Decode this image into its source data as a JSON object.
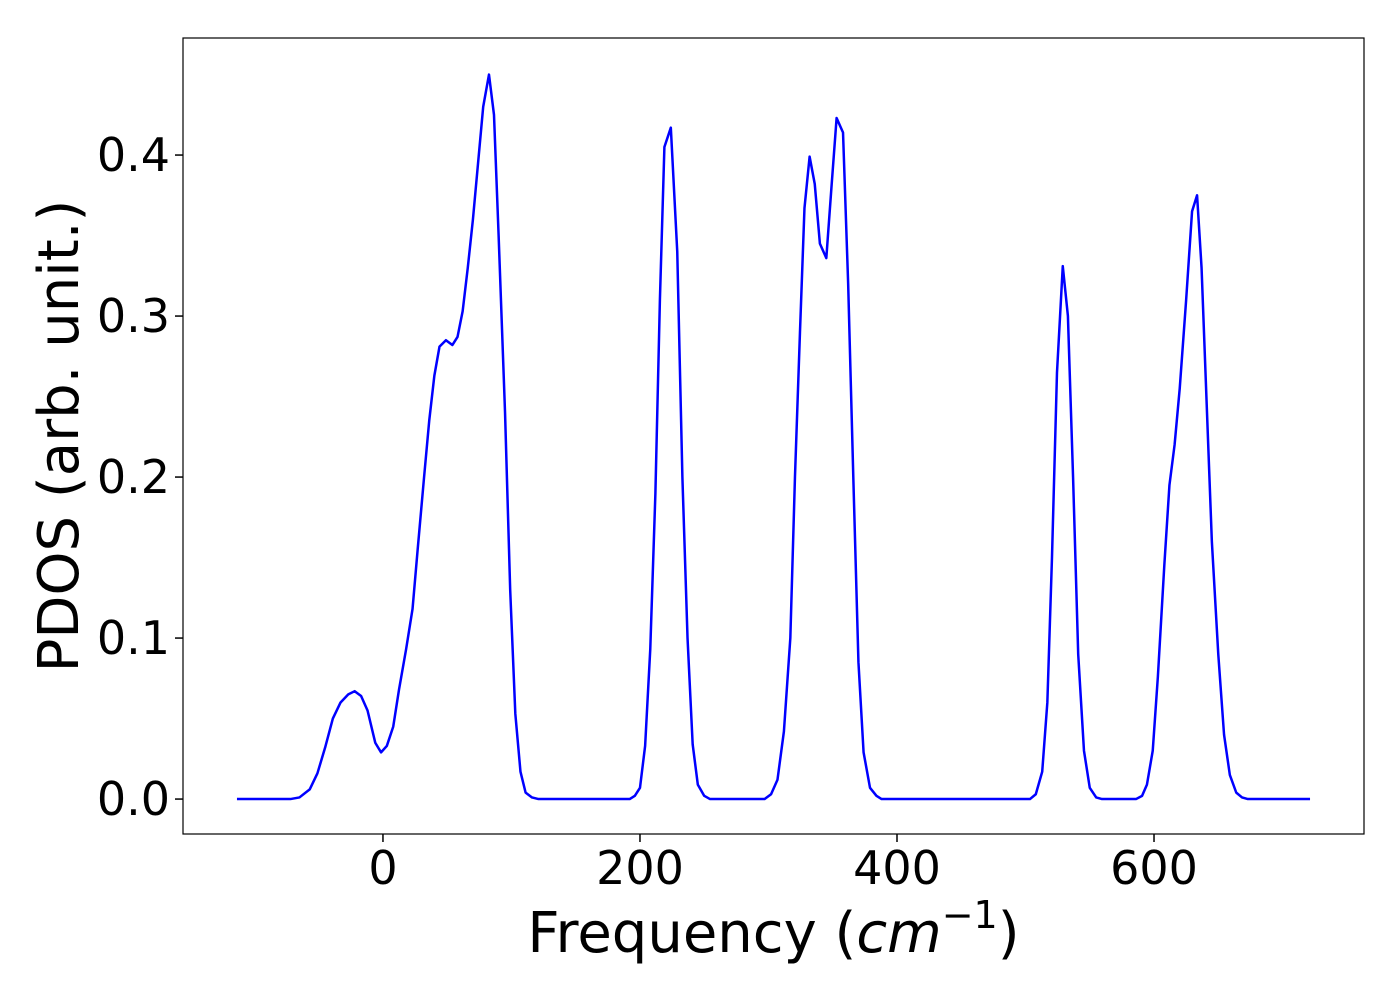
{
  "chart_data": {
    "type": "line",
    "y_label": "PDOS (arb. unit.)",
    "x_label_parts": [
      "Frequency (",
      "cm",
      "−1",
      ")"
    ],
    "xlim": [
      -155.6,
      763.4
    ],
    "ylim": [
      -0.0217,
      0.4727
    ],
    "xticks": [
      0,
      200,
      400,
      600
    ],
    "yticks": [
      {
        "value": 0,
        "label": "0.0"
      },
      0.1,
      0.2,
      0.3,
      0.4
    ],
    "grid": false,
    "series": [
      {
        "color": "#0000ff",
        "x": [
          -113.6,
          -72,
          -65,
          -57,
          -51,
          -45,
          -39,
          -33,
          -27,
          -22,
          -17,
          -12,
          -6,
          -1.5,
          3,
          8,
          12.5,
          18,
          23,
          27,
          32,
          36,
          40,
          44,
          49,
          54,
          58,
          62,
          66,
          70,
          74,
          78,
          82.5,
          86.4,
          90,
          95,
          99,
          103,
          107,
          111,
          116,
          121,
          192,
          196,
          200,
          204,
          208,
          212,
          215.5,
          219,
          224,
          229,
          233,
          237,
          241,
          245,
          250,
          254.5,
          297,
          302,
          307,
          312,
          317,
          320.6,
          324.5,
          328,
          332,
          336,
          340,
          345,
          349,
          353,
          358,
          362,
          366,
          370,
          374,
          379,
          384,
          388,
          503.5,
          508,
          513,
          517,
          520.6,
          524.5,
          529,
          533,
          537,
          541,
          545.5,
          550,
          555,
          559.5,
          586,
          590.7,
          594.5,
          599,
          603,
          608,
          612,
          616,
          620,
          625,
          629.6,
          633.5,
          637,
          641,
          645,
          650,
          654.5,
          659,
          664,
          668.5,
          673,
          721.4
        ],
        "values": [
          0,
          0,
          0.001,
          0.006,
          0.016,
          0.032,
          0.05,
          0.06,
          0.065,
          0.067,
          0.064,
          0.055,
          0.035,
          0.029,
          0.033,
          0.045,
          0.068,
          0.093,
          0.118,
          0.155,
          0.2,
          0.235,
          0.263,
          0.281,
          0.285,
          0.282,
          0.287,
          0.303,
          0.33,
          0.36,
          0.395,
          0.43,
          0.45,
          0.425,
          0.35,
          0.24,
          0.13,
          0.053,
          0.017,
          0.004,
          0.001,
          0,
          0,
          0.002,
          0.007,
          0.033,
          0.093,
          0.19,
          0.31,
          0.405,
          0.417,
          0.34,
          0.2,
          0.1,
          0.034,
          0.009,
          0.002,
          0,
          0,
          0.003,
          0.012,
          0.042,
          0.1,
          0.2,
          0.29,
          0.367,
          0.399,
          0.382,
          0.345,
          0.336,
          0.38,
          0.423,
          0.414,
          0.32,
          0.2,
          0.085,
          0.029,
          0.007,
          0.002,
          0,
          0,
          0.003,
          0.017,
          0.06,
          0.15,
          0.265,
          0.331,
          0.3,
          0.2,
          0.09,
          0.03,
          0.007,
          0.001,
          0,
          0,
          0.002,
          0.009,
          0.03,
          0.076,
          0.145,
          0.195,
          0.22,
          0.255,
          0.31,
          0.365,
          0.375,
          0.33,
          0.245,
          0.16,
          0.09,
          0.04,
          0.015,
          0.004,
          0.001,
          0,
          0
        ]
      }
    ]
  }
}
